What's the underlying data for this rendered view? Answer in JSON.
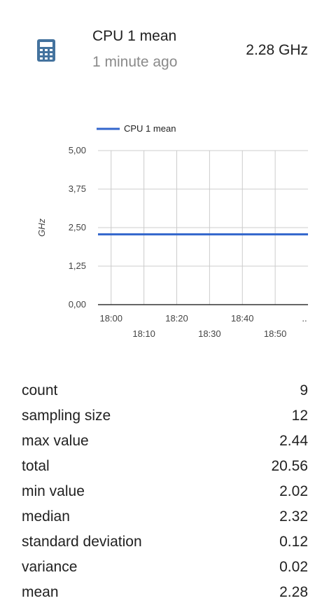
{
  "entity": {
    "icon": "calculator-icon",
    "name": "CPU 1 mean",
    "last_changed": "1 minute ago",
    "state": "2.28 GHz"
  },
  "colors": {
    "icon": "#44739e",
    "series": "#3366cc",
    "grid": "#cccccc",
    "text": "#212121",
    "secondary_text": "#8a8a8a"
  },
  "chart_data": {
    "type": "line",
    "legend": [
      "CPU 1 mean"
    ],
    "legend_position": "top",
    "ylabel": "GHz",
    "ylim": [
      0,
      5
    ],
    "y_ticks": [
      "5,00",
      "3,75",
      "2,50",
      "1,25",
      "0,00"
    ],
    "x_ticks_row1": [
      "18:00",
      "18:20",
      "18:40",
      ".."
    ],
    "x_ticks_row2": [
      "18:10",
      "18:30",
      "18:50"
    ],
    "grid": true,
    "series": [
      {
        "name": "CPU 1 mean",
        "x": [
          "17:56",
          "19:00"
        ],
        "values": [
          2.28,
          2.28
        ]
      }
    ]
  },
  "stats": [
    {
      "label": "count",
      "value": "9"
    },
    {
      "label": "sampling size",
      "value": "12"
    },
    {
      "label": "max value",
      "value": "2.44"
    },
    {
      "label": "total",
      "value": "20.56"
    },
    {
      "label": "min value",
      "value": "2.02"
    },
    {
      "label": "median",
      "value": "2.32"
    },
    {
      "label": "standard deviation",
      "value": "0.12"
    },
    {
      "label": "variance",
      "value": "0.02"
    },
    {
      "label": "mean",
      "value": "2.28"
    }
  ]
}
